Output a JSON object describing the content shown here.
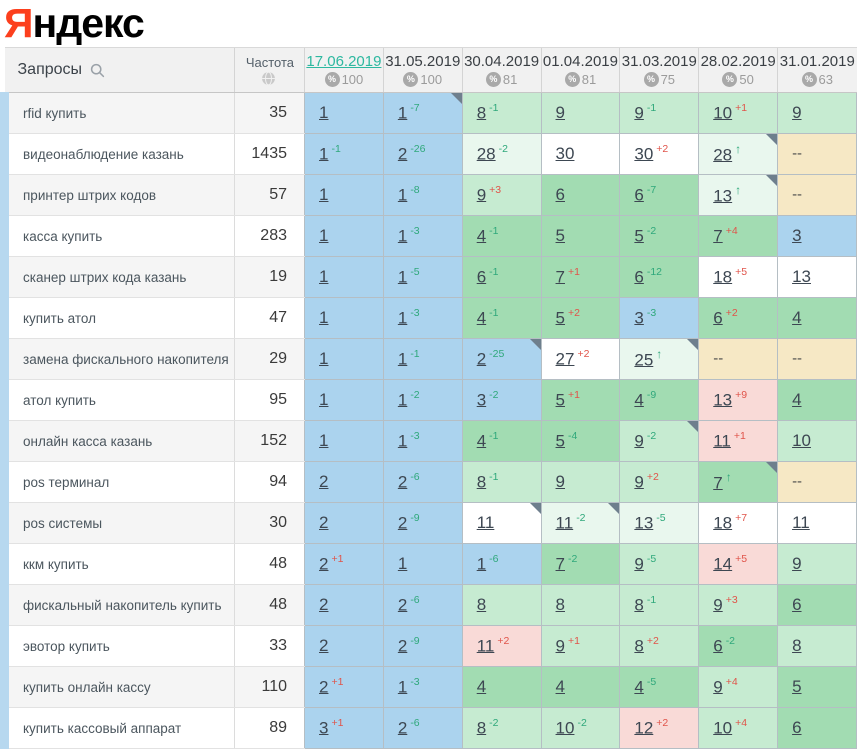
{
  "logo": {
    "first_letter": "Я",
    "rest": "ндекс",
    "brand_color": "#fc3f1d"
  },
  "colors": {
    "tier_blue": "#abd3ee",
    "tier_green": "#a2dcb2",
    "tier_lightgreen": "#c6ebd1",
    "tier_palegreen": "#e9f7ee",
    "tier_white": "#ffffff",
    "tier_pink": "#f9dad7",
    "tier_beige": "#f6e8c5",
    "delta_improved": "#2fa87b",
    "delta_dropped": "#e0544a",
    "current_date_link": "#2db8a0",
    "row_stripe": "#b7d8ef"
  },
  "table": {
    "queries_header": "Запросы",
    "frequency_header": "Частота",
    "absent_value": "--",
    "columns": [
      {
        "date": "17.06.2019",
        "coverage": "100",
        "current": true
      },
      {
        "date": "31.05.2019",
        "coverage": "100",
        "current": false
      },
      {
        "date": "30.04.2019",
        "coverage": "81",
        "current": false
      },
      {
        "date": "01.04.2019",
        "coverage": "81",
        "current": false
      },
      {
        "date": "31.03.2019",
        "coverage": "75",
        "current": false
      },
      {
        "date": "28.02.2019",
        "coverage": "50",
        "current": false
      },
      {
        "date": "31.01.2019",
        "coverage": "63",
        "current": false
      }
    ],
    "rows": [
      {
        "keyword": "rfid купить",
        "frequency": "35",
        "cells": [
          {
            "pos": "1",
            "tier": "blue"
          },
          {
            "pos": "1",
            "delta": "-7",
            "tier": "blue",
            "marker": true
          },
          {
            "pos": "8",
            "delta": "-1",
            "tier": "lightgreen"
          },
          {
            "pos": "9",
            "tier": "lightgreen"
          },
          {
            "pos": "9",
            "delta": "-1",
            "tier": "lightgreen"
          },
          {
            "pos": "10",
            "delta": "+1",
            "tier": "lightgreen"
          },
          {
            "pos": "9",
            "tier": "lightgreen"
          }
        ]
      },
      {
        "keyword": "видеонаблюдение казань",
        "frequency": "1435",
        "cells": [
          {
            "pos": "1",
            "delta": "-1",
            "tier": "blue"
          },
          {
            "pos": "2",
            "delta": "-26",
            "tier": "blue"
          },
          {
            "pos": "28",
            "delta": "-2",
            "tier": "palegreen"
          },
          {
            "pos": "30",
            "tier": "white"
          },
          {
            "pos": "30",
            "delta": "+2",
            "tier": "white"
          },
          {
            "pos": "28",
            "delta": "↑",
            "tier": "palegreen",
            "marker": true
          },
          {
            "pos": "--",
            "tier": "beige"
          }
        ]
      },
      {
        "keyword": "принтер штрих кодов",
        "frequency": "57",
        "cells": [
          {
            "pos": "1",
            "tier": "blue"
          },
          {
            "pos": "1",
            "delta": "-8",
            "tier": "blue"
          },
          {
            "pos": "9",
            "delta": "+3",
            "tier": "lightgreen"
          },
          {
            "pos": "6",
            "tier": "green"
          },
          {
            "pos": "6",
            "delta": "-7",
            "tier": "green"
          },
          {
            "pos": "13",
            "delta": "↑",
            "tier": "palegreen",
            "marker": true
          },
          {
            "pos": "--",
            "tier": "beige"
          }
        ]
      },
      {
        "keyword": "касса купить",
        "frequency": "283",
        "cells": [
          {
            "pos": "1",
            "tier": "blue"
          },
          {
            "pos": "1",
            "delta": "-3",
            "tier": "blue"
          },
          {
            "pos": "4",
            "delta": "-1",
            "tier": "green"
          },
          {
            "pos": "5",
            "tier": "green"
          },
          {
            "pos": "5",
            "delta": "-2",
            "tier": "green"
          },
          {
            "pos": "7",
            "delta": "+4",
            "tier": "green"
          },
          {
            "pos": "3",
            "tier": "blue"
          }
        ]
      },
      {
        "keyword": "сканер штрих кода казань",
        "frequency": "19",
        "cells": [
          {
            "pos": "1",
            "tier": "blue"
          },
          {
            "pos": "1",
            "delta": "-5",
            "tier": "blue"
          },
          {
            "pos": "6",
            "delta": "-1",
            "tier": "green"
          },
          {
            "pos": "7",
            "delta": "+1",
            "tier": "green"
          },
          {
            "pos": "6",
            "delta": "-12",
            "tier": "green"
          },
          {
            "pos": "18",
            "delta": "+5",
            "tier": "white"
          },
          {
            "pos": "13",
            "tier": "white"
          }
        ]
      },
      {
        "keyword": "купить атол",
        "frequency": "47",
        "cells": [
          {
            "pos": "1",
            "tier": "blue"
          },
          {
            "pos": "1",
            "delta": "-3",
            "tier": "blue"
          },
          {
            "pos": "4",
            "delta": "-1",
            "tier": "green"
          },
          {
            "pos": "5",
            "delta": "+2",
            "tier": "green"
          },
          {
            "pos": "3",
            "delta": "-3",
            "tier": "blue"
          },
          {
            "pos": "6",
            "delta": "+2",
            "tier": "green"
          },
          {
            "pos": "4",
            "tier": "green"
          }
        ]
      },
      {
        "keyword": "замена фискального накопителя",
        "frequency": "29",
        "cells": [
          {
            "pos": "1",
            "tier": "blue"
          },
          {
            "pos": "1",
            "delta": "-1",
            "tier": "blue"
          },
          {
            "pos": "2",
            "delta": "-25",
            "tier": "blue",
            "marker": true
          },
          {
            "pos": "27",
            "delta": "+2",
            "tier": "white"
          },
          {
            "pos": "25",
            "delta": "↑",
            "tier": "palegreen",
            "marker": true
          },
          {
            "pos": "--",
            "tier": "beige"
          },
          {
            "pos": "--",
            "tier": "beige"
          }
        ]
      },
      {
        "keyword": "атол купить",
        "frequency": "95",
        "cells": [
          {
            "pos": "1",
            "tier": "blue"
          },
          {
            "pos": "1",
            "delta": "-2",
            "tier": "blue"
          },
          {
            "pos": "3",
            "delta": "-2",
            "tier": "blue"
          },
          {
            "pos": "5",
            "delta": "+1",
            "tier": "green"
          },
          {
            "pos": "4",
            "delta": "-9",
            "tier": "green"
          },
          {
            "pos": "13",
            "delta": "+9",
            "tier": "pink"
          },
          {
            "pos": "4",
            "tier": "green"
          }
        ]
      },
      {
        "keyword": "онлайн касса казань",
        "frequency": "152",
        "cells": [
          {
            "pos": "1",
            "tier": "blue"
          },
          {
            "pos": "1",
            "delta": "-3",
            "tier": "blue"
          },
          {
            "pos": "4",
            "delta": "-1",
            "tier": "green"
          },
          {
            "pos": "5",
            "delta": "-4",
            "tier": "green"
          },
          {
            "pos": "9",
            "delta": "-2",
            "tier": "lightgreen",
            "marker": true
          },
          {
            "pos": "11",
            "delta": "+1",
            "tier": "pink"
          },
          {
            "pos": "10",
            "tier": "lightgreen"
          }
        ]
      },
      {
        "keyword": "pos терминал",
        "frequency": "94",
        "cells": [
          {
            "pos": "2",
            "tier": "blue"
          },
          {
            "pos": "2",
            "delta": "-6",
            "tier": "blue"
          },
          {
            "pos": "8",
            "delta": "-1",
            "tier": "lightgreen"
          },
          {
            "pos": "9",
            "tier": "lightgreen"
          },
          {
            "pos": "9",
            "delta": "+2",
            "tier": "lightgreen"
          },
          {
            "pos": "7",
            "delta": "↑",
            "tier": "green",
            "marker": true
          },
          {
            "pos": "--",
            "tier": "beige"
          }
        ]
      },
      {
        "keyword": "pos системы",
        "frequency": "30",
        "cells": [
          {
            "pos": "2",
            "tier": "blue"
          },
          {
            "pos": "2",
            "delta": "-9",
            "tier": "blue"
          },
          {
            "pos": "11",
            "tier": "white",
            "marker": true
          },
          {
            "pos": "11",
            "delta": "-2",
            "tier": "palegreen",
            "marker": true
          },
          {
            "pos": "13",
            "delta": "-5",
            "tier": "palegreen"
          },
          {
            "pos": "18",
            "delta": "+7",
            "tier": "white"
          },
          {
            "pos": "11",
            "tier": "white"
          }
        ]
      },
      {
        "keyword": "ккм купить",
        "frequency": "48",
        "cells": [
          {
            "pos": "2",
            "delta": "+1",
            "tier": "blue"
          },
          {
            "pos": "1",
            "tier": "blue"
          },
          {
            "pos": "1",
            "delta": "-6",
            "tier": "blue"
          },
          {
            "pos": "7",
            "delta": "-2",
            "tier": "green"
          },
          {
            "pos": "9",
            "delta": "-5",
            "tier": "lightgreen"
          },
          {
            "pos": "14",
            "delta": "+5",
            "tier": "pink"
          },
          {
            "pos": "9",
            "tier": "lightgreen"
          }
        ]
      },
      {
        "keyword": "фискальный накопитель купить",
        "frequency": "48",
        "cells": [
          {
            "pos": "2",
            "tier": "blue"
          },
          {
            "pos": "2",
            "delta": "-6",
            "tier": "blue"
          },
          {
            "pos": "8",
            "tier": "lightgreen"
          },
          {
            "pos": "8",
            "tier": "lightgreen"
          },
          {
            "pos": "8",
            "delta": "-1",
            "tier": "lightgreen"
          },
          {
            "pos": "9",
            "delta": "+3",
            "tier": "lightgreen"
          },
          {
            "pos": "6",
            "tier": "green"
          }
        ]
      },
      {
        "keyword": "эвотор купить",
        "frequency": "33",
        "cells": [
          {
            "pos": "2",
            "tier": "blue"
          },
          {
            "pos": "2",
            "delta": "-9",
            "tier": "blue"
          },
          {
            "pos": "11",
            "delta": "+2",
            "tier": "pink"
          },
          {
            "pos": "9",
            "delta": "+1",
            "tier": "lightgreen"
          },
          {
            "pos": "8",
            "delta": "+2",
            "tier": "lightgreen"
          },
          {
            "pos": "6",
            "delta": "-2",
            "tier": "green"
          },
          {
            "pos": "8",
            "tier": "lightgreen"
          }
        ]
      },
      {
        "keyword": "купить онлайн кассу",
        "frequency": "110",
        "cells": [
          {
            "pos": "2",
            "delta": "+1",
            "tier": "blue"
          },
          {
            "pos": "1",
            "delta": "-3",
            "tier": "blue"
          },
          {
            "pos": "4",
            "tier": "green"
          },
          {
            "pos": "4",
            "tier": "green"
          },
          {
            "pos": "4",
            "delta": "-5",
            "tier": "green"
          },
          {
            "pos": "9",
            "delta": "+4",
            "tier": "lightgreen"
          },
          {
            "pos": "5",
            "tier": "green"
          }
        ]
      },
      {
        "keyword": "купить кассовый аппарат",
        "frequency": "89",
        "cells": [
          {
            "pos": "3",
            "delta": "+1",
            "tier": "blue"
          },
          {
            "pos": "2",
            "delta": "-6",
            "tier": "blue"
          },
          {
            "pos": "8",
            "delta": "-2",
            "tier": "lightgreen"
          },
          {
            "pos": "10",
            "delta": "-2",
            "tier": "lightgreen"
          },
          {
            "pos": "12",
            "delta": "+2",
            "tier": "pink"
          },
          {
            "pos": "10",
            "delta": "+4",
            "tier": "lightgreen"
          },
          {
            "pos": "6",
            "tier": "green"
          }
        ]
      }
    ]
  }
}
